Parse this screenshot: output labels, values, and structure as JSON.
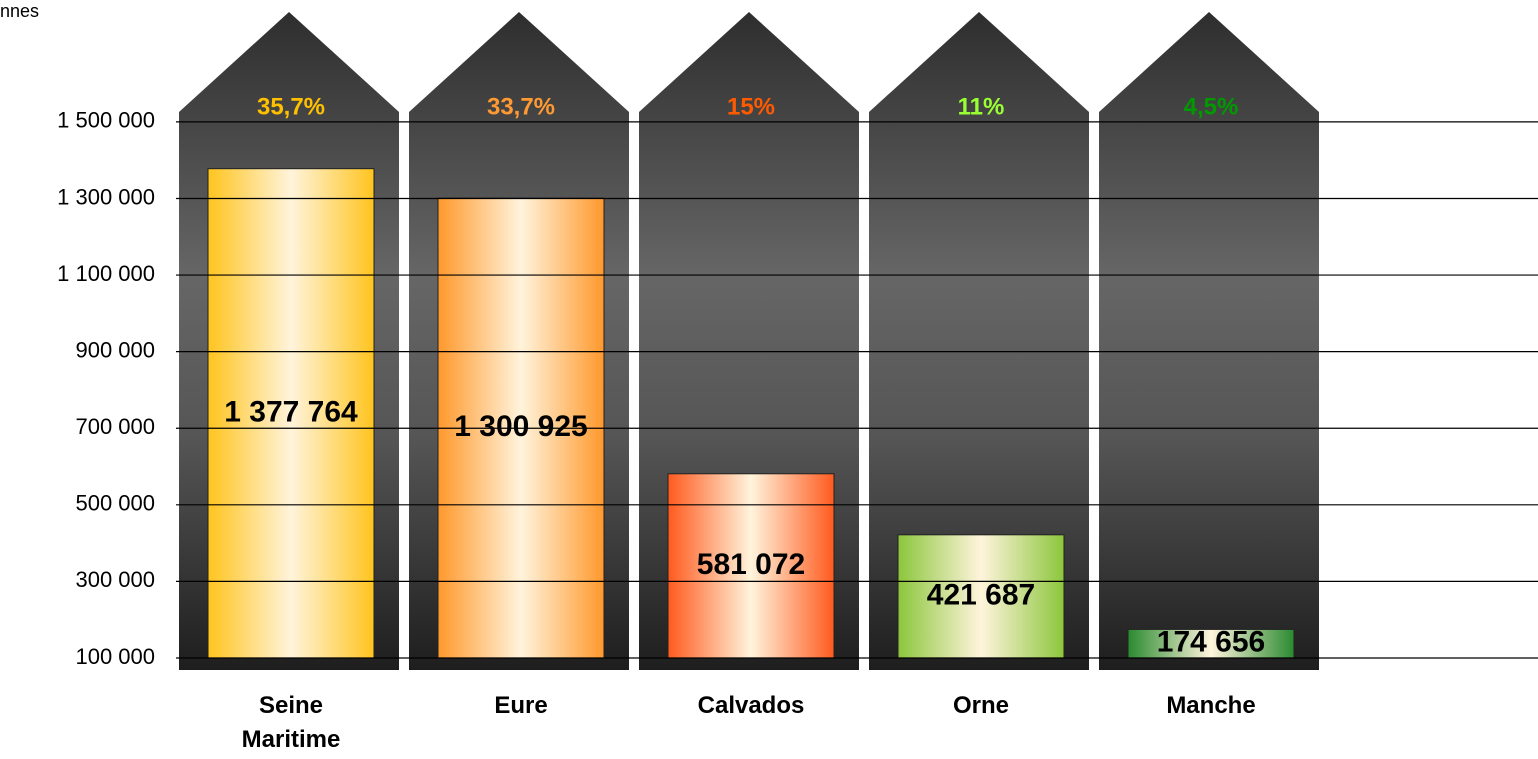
{
  "chart_data": {
    "type": "bar",
    "y_axis_label": "nnes",
    "categories": [
      "Seine Maritime",
      "Eure",
      "Calvados",
      "Orne",
      "Manche"
    ],
    "values": [
      1377764,
      1300925,
      581072,
      421687,
      174656
    ],
    "value_labels": [
      "1 377 764",
      "1 300 925",
      "581 072",
      "421 687",
      "174 656"
    ],
    "colors": [
      "#ffc41e",
      "#ff982c",
      "#ff5a1e",
      "#8cc63c",
      "#2a8a30"
    ],
    "shares": {
      "values": [
        35.7,
        33.7,
        15,
        11,
        4.5
      ],
      "value_labels": [
        "35,7%",
        "33,7%",
        "15%",
        "11%",
        "4,5%"
      ],
      "colors": [
        "#ffc000",
        "#ff9933",
        "#ff5a00",
        "#99ff33",
        "#009900"
      ]
    },
    "ylim": [
      100000,
      1800000
    ],
    "yticks": [
      {
        "value": 100000,
        "label": "100 000"
      },
      {
        "value": 300000,
        "label": "300 000"
      },
      {
        "value": 500000,
        "label": "500 000"
      },
      {
        "value": 700000,
        "label": "700 000"
      },
      {
        "value": 900000,
        "label": "900 000"
      },
      {
        "value": 1100000,
        "label": "1 100 000"
      },
      {
        "value": 1300000,
        "label": "1 300 000"
      },
      {
        "value": 1500000,
        "label": "1 500 000"
      }
    ],
    "grid": true
  }
}
